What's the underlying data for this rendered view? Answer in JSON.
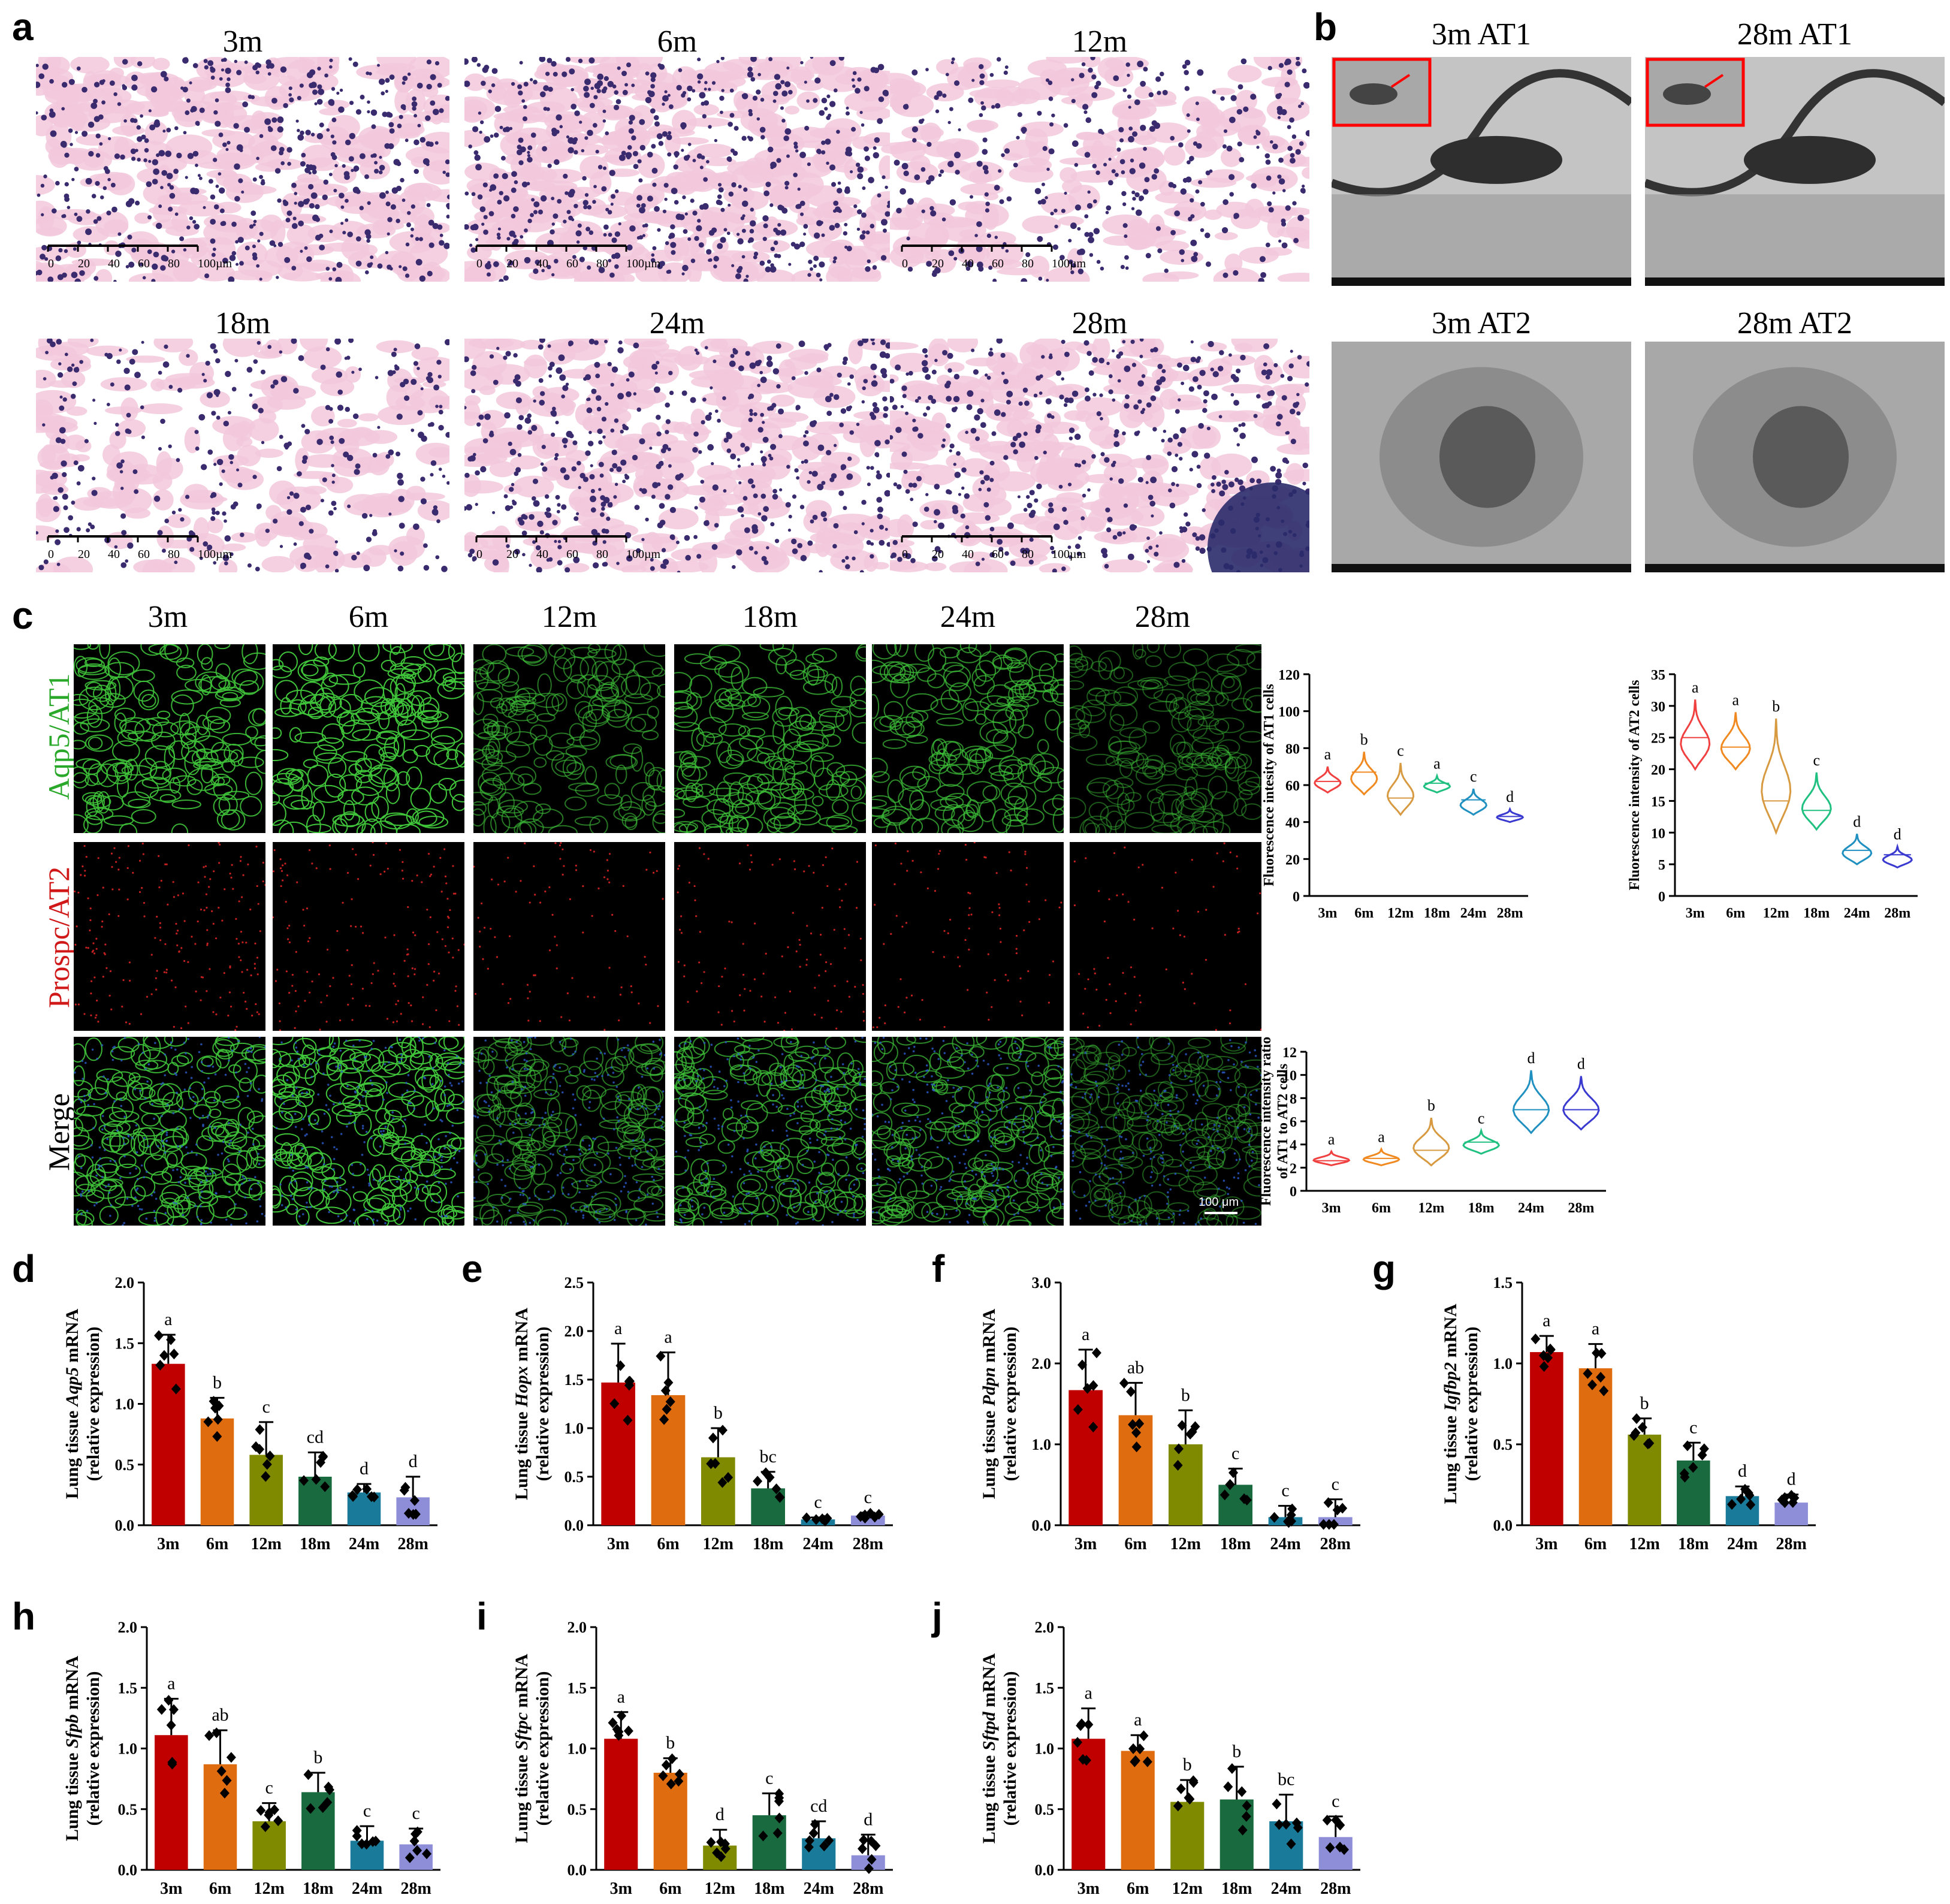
{
  "panels": {
    "a": {
      "label": "a",
      "titles": [
        "3m",
        "6m",
        "12m",
        "18m",
        "24m",
        "28m"
      ],
      "scale_ticks": [
        "0",
        "20",
        "40",
        "60",
        "80",
        "100µm"
      ]
    },
    "b": {
      "label": "b",
      "titles": [
        "3m AT1",
        "28m AT1",
        "3m AT2",
        "28m AT2"
      ]
    },
    "c": {
      "label": "c",
      "columns": [
        "3m",
        "6m",
        "12m",
        "18m",
        "24m",
        "28m"
      ],
      "rows": [
        "Aqp5/AT1",
        "Prospc/AT2",
        "Merge"
      ],
      "scalebar": "100 μm"
    },
    "d": {
      "label": "d"
    },
    "e": {
      "label": "e"
    },
    "f": {
      "label": "f"
    },
    "g": {
      "label": "g"
    },
    "h": {
      "label": "h"
    },
    "i": {
      "label": "i"
    },
    "j": {
      "label": "j"
    }
  },
  "colors": {
    "he_bg": "#f2c8dc",
    "he_nuclei": "#3a2a6e",
    "green": "#3fc43a",
    "red": "#c42020",
    "blue": "#2a5ac8",
    "tem_bg": "#b8b8b8",
    "tem_dark": "#2a2a2a",
    "series": [
      "#c00000",
      "#e06c10",
      "#7f8a00",
      "#1a6a40",
      "#1a7a9a",
      "#8e8ed8"
    ]
  },
  "chart_data": [
    {
      "id": "c1",
      "type": "violin",
      "categories": [
        "3m",
        "6m",
        "12m",
        "18m",
        "24m",
        "28m"
      ],
      "ylabel": "Fluorescence intesity of AT1 cells",
      "ylim": [
        0,
        120
      ],
      "yticks": [
        0,
        20,
        40,
        60,
        80,
        100,
        120
      ],
      "values": [
        62,
        67,
        53,
        61,
        52,
        43
      ],
      "spread": [
        [
          56,
          70
        ],
        [
          55,
          78
        ],
        [
          44,
          72
        ],
        [
          56,
          65
        ],
        [
          44,
          58
        ],
        [
          40,
          47
        ]
      ],
      "letters": [
        "a",
        "b",
        "c",
        "a",
        "c",
        "d"
      ],
      "colors": [
        "#f04040",
        "#f08a20",
        "#d89a40",
        "#20c080",
        "#2090c0",
        "#3a3ad0"
      ]
    },
    {
      "id": "c2",
      "type": "violin",
      "categories": [
        "3m",
        "6m",
        "12m",
        "18m",
        "24m",
        "28m"
      ],
      "ylabel": "Fluorescence intensity of AT2 cells",
      "ylim": [
        0,
        35
      ],
      "yticks": [
        0,
        5,
        10,
        15,
        20,
        25,
        30,
        35
      ],
      "values": [
        25,
        23.5,
        15,
        13.5,
        7.2,
        6.5
      ],
      "spread": [
        [
          20,
          31
        ],
        [
          20,
          29
        ],
        [
          10,
          28
        ],
        [
          10.5,
          19.5
        ],
        [
          5,
          9.8
        ],
        [
          4.5,
          7.8
        ]
      ],
      "letters": [
        "a",
        "a",
        "b",
        "c",
        "d",
        "d"
      ],
      "colors": [
        "#f04040",
        "#f08a20",
        "#d89a40",
        "#20c080",
        "#2090c0",
        "#3a3ad0"
      ]
    },
    {
      "id": "c3",
      "type": "violin",
      "categories": [
        "3m",
        "6m",
        "12m",
        "18m",
        "24m",
        "28m"
      ],
      "ylabel": "Fluorescence intensity ratio",
      "ylabel2": "of AT1 to AT2 cells",
      "ylim": [
        0,
        12
      ],
      "yticks": [
        0,
        2,
        4,
        6,
        8,
        10,
        12
      ],
      "values": [
        2.6,
        2.8,
        3.5,
        4.2,
        7.0,
        7.0
      ],
      "spread": [
        [
          2.2,
          3.4
        ],
        [
          2.2,
          3.6
        ],
        [
          2.2,
          6.3
        ],
        [
          3.2,
          5.2
        ],
        [
          5.0,
          10.4
        ],
        [
          5.3,
          9.9
        ]
      ],
      "letters": [
        "a",
        "a",
        "b",
        "c",
        "d",
        "d"
      ],
      "colors": [
        "#f04040",
        "#f08a20",
        "#d89a40",
        "#20c080",
        "#2090c0",
        "#3a3ad0"
      ]
    },
    {
      "id": "d",
      "type": "bar",
      "categories": [
        "3m",
        "6m",
        "12m",
        "18m",
        "24m",
        "28m"
      ],
      "gene": "Aqp5",
      "ylabel_pre": "Lung tissue ",
      "ylabel_post": " mRNA",
      "ylabel2": "(relative expression)",
      "ylim": [
        0,
        2.0
      ],
      "yticks": [
        "0.0",
        "0.5",
        "1.0",
        "1.5",
        "2.0"
      ],
      "values": [
        1.33,
        0.88,
        0.58,
        0.4,
        0.27,
        0.23
      ],
      "errors": [
        0.24,
        0.17,
        0.27,
        0.2,
        0.07,
        0.17
      ],
      "letters": [
        "a",
        "b",
        "c",
        "cd",
        "d",
        "d"
      ]
    },
    {
      "id": "e",
      "type": "bar",
      "categories": [
        "3m",
        "6m",
        "12m",
        "18m",
        "24m",
        "28m"
      ],
      "gene": "Hopx",
      "ylabel_pre": "Lung tissue ",
      "ylabel_post": " mRNA",
      "ylabel2": "(relative expression)",
      "ylim": [
        0,
        2.5
      ],
      "yticks": [
        "0.0",
        "0.5",
        "1.0",
        "1.5",
        "2.0",
        "2.5"
      ],
      "values": [
        1.47,
        1.34,
        0.7,
        0.38,
        0.06,
        0.1
      ],
      "errors": [
        0.4,
        0.44,
        0.3,
        0.17,
        0.02,
        0.03
      ],
      "letters": [
        "a",
        "a",
        "b",
        "bc",
        "c",
        "c"
      ]
    },
    {
      "id": "f",
      "type": "bar",
      "categories": [
        "3m",
        "6m",
        "12m",
        "18m",
        "24m",
        "28m"
      ],
      "gene": "Pdpn",
      "ylabel_pre": "Lung tissue ",
      "ylabel_post": " mRNA",
      "ylabel2": "(relative expression)",
      "ylim": [
        0,
        3.0
      ],
      "yticks": [
        "0.0",
        "1.0",
        "2.0",
        "3.0"
      ],
      "values": [
        1.67,
        1.36,
        1.0,
        0.5,
        0.1,
        0.1
      ],
      "errors": [
        0.5,
        0.4,
        0.42,
        0.2,
        0.14,
        0.22
      ],
      "letters": [
        "a",
        "ab",
        "b",
        "c",
        "c",
        "c"
      ]
    },
    {
      "id": "g",
      "type": "bar",
      "categories": [
        "3m",
        "6m",
        "12m",
        "18m",
        "24m",
        "28m"
      ],
      "gene": "Igfbp2",
      "ylabel_pre": "Lung tissue ",
      "ylabel_post": " mRNA",
      "ylabel2": "(relative expression)",
      "ylim": [
        0,
        1.5
      ],
      "yticks": [
        "0.0",
        "0.5",
        "1.0",
        "1.5"
      ],
      "values": [
        1.07,
        0.97,
        0.56,
        0.4,
        0.18,
        0.14
      ],
      "errors": [
        0.1,
        0.15,
        0.1,
        0.11,
        0.06,
        0.05
      ],
      "letters": [
        "a",
        "a",
        "b",
        "c",
        "d",
        "d"
      ]
    },
    {
      "id": "h",
      "type": "bar",
      "categories": [
        "3m",
        "6m",
        "12m",
        "18m",
        "24m",
        "28m"
      ],
      "gene": "Sfpb",
      "ylabel_pre": "Lung tissue ",
      "ylabel_post": " mRNA",
      "ylabel2": "(relative expression)",
      "ylim": [
        0,
        2.0
      ],
      "yticks": [
        "0.0",
        "0.5",
        "1.0",
        "1.5",
        "2.0"
      ],
      "values": [
        1.11,
        0.87,
        0.4,
        0.64,
        0.24,
        0.21
      ],
      "errors": [
        0.3,
        0.28,
        0.15,
        0.16,
        0.12,
        0.13
      ],
      "letters": [
        "a",
        "ab",
        "c",
        "b",
        "c",
        "c"
      ]
    },
    {
      "id": "i",
      "type": "bar",
      "categories": [
        "3m",
        "6m",
        "12m",
        "18m",
        "24m",
        "28m"
      ],
      "gene": "Sftpc",
      "ylabel_pre": "Lung tissue ",
      "ylabel_post": " mRNA",
      "ylabel2": "(relative expression)",
      "ylim": [
        0,
        2.0
      ],
      "yticks": [
        "0.0",
        "0.5",
        "1.0",
        "1.5",
        "2.0"
      ],
      "values": [
        1.08,
        0.8,
        0.2,
        0.45,
        0.26,
        0.12
      ],
      "errors": [
        0.22,
        0.12,
        0.13,
        0.18,
        0.14,
        0.17
      ],
      "letters": [
        "a",
        "b",
        "d",
        "c",
        "cd",
        "d"
      ]
    },
    {
      "id": "j",
      "type": "bar",
      "categories": [
        "3m",
        "6m",
        "12m",
        "18m",
        "24m",
        "28m"
      ],
      "gene": "Sftpd",
      "ylabel_pre": "Lung tissue ",
      "ylabel_post": " mRNA",
      "ylabel2": "(relative expression)",
      "ylim": [
        0,
        2.0
      ],
      "yticks": [
        "0.0",
        "0.5",
        "1.0",
        "1.5",
        "2.0"
      ],
      "values": [
        1.08,
        0.98,
        0.56,
        0.58,
        0.4,
        0.27
      ],
      "errors": [
        0.25,
        0.13,
        0.18,
        0.27,
        0.22,
        0.17
      ],
      "letters": [
        "a",
        "a",
        "b",
        "b",
        "bc",
        "c"
      ]
    }
  ]
}
